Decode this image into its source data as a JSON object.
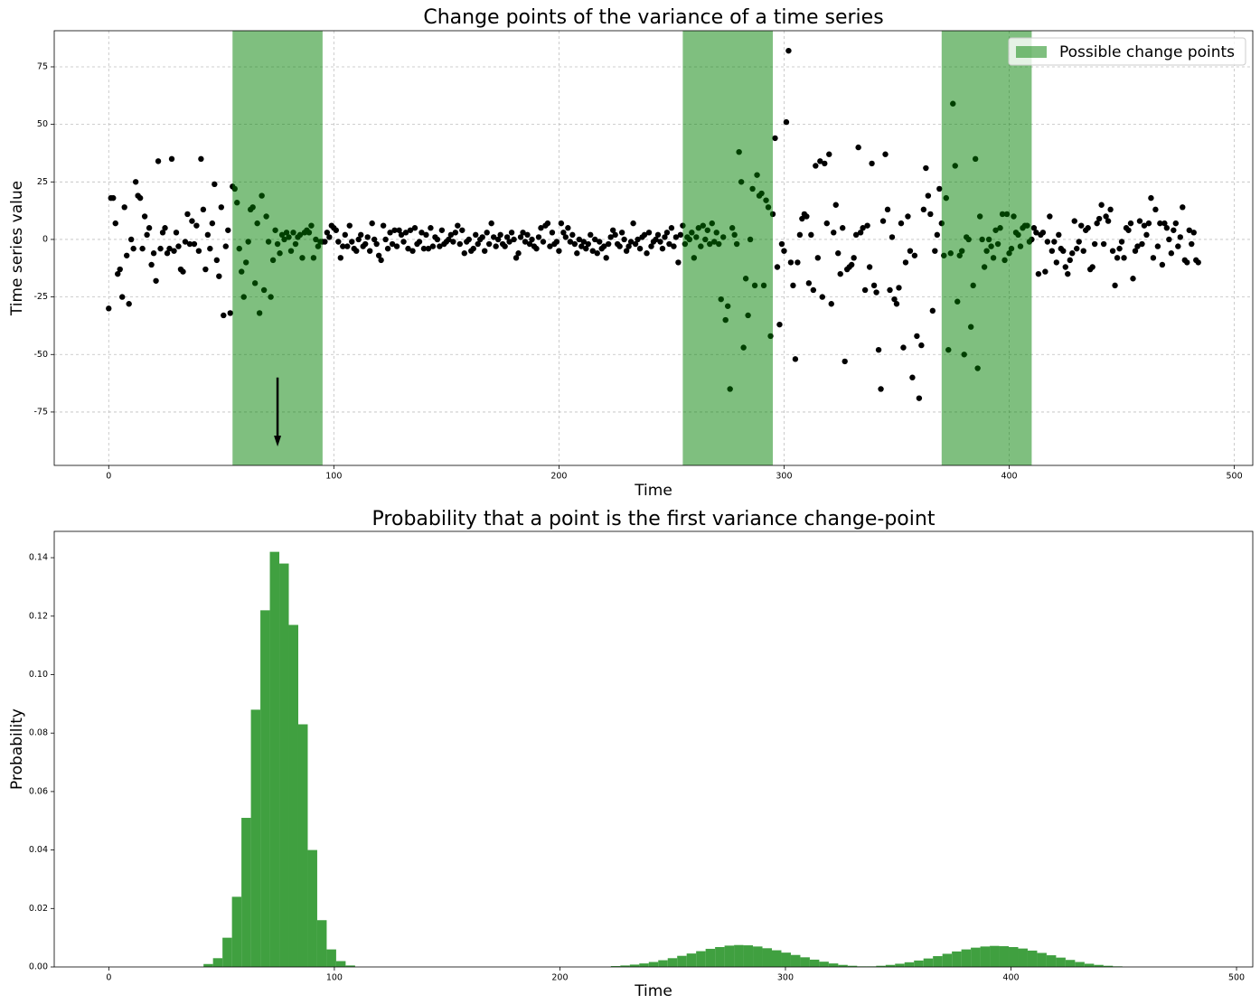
{
  "chart_data": [
    {
      "type": "scatter",
      "title": "Change points of the variance of a time series",
      "xlabel": "Time",
      "ylabel": "Time series value",
      "x": [
        0,
        1,
        2,
        3,
        4,
        5,
        6,
        7,
        8,
        9,
        10,
        11,
        12,
        13,
        14,
        15,
        16,
        17,
        18,
        19,
        20,
        21,
        22,
        23,
        24,
        25,
        26,
        27,
        28,
        29,
        30,
        31,
        32,
        33,
        34,
        35,
        36,
        37,
        38,
        39,
        40,
        41,
        42,
        43,
        44,
        45,
        46,
        47,
        48,
        49,
        50,
        51,
        52,
        53,
        54,
        55,
        56,
        57,
        58,
        59,
        60,
        61,
        62,
        63,
        64,
        65,
        66,
        67,
        68,
        69,
        70,
        71,
        72,
        73,
        74,
        75,
        76,
        77,
        78,
        79,
        80,
        81,
        82,
        83,
        84,
        85,
        86,
        87,
        88,
        89,
        90,
        91,
        92,
        93,
        94,
        95,
        96,
        97,
        98,
        99,
        100,
        101,
        102,
        103,
        104,
        105,
        106,
        107,
        108,
        109,
        110,
        111,
        112,
        113,
        114,
        115,
        116,
        117,
        118,
        119,
        120,
        121,
        122,
        123,
        124,
        125,
        126,
        127,
        128,
        129,
        130,
        131,
        132,
        133,
        134,
        135,
        136,
        137,
        138,
        139,
        140,
        141,
        142,
        143,
        144,
        145,
        146,
        147,
        148,
        149,
        150,
        151,
        152,
        153,
        154,
        155,
        156,
        157,
        158,
        159,
        160,
        161,
        162,
        163,
        164,
        165,
        166,
        167,
        168,
        169,
        170,
        171,
        172,
        173,
        174,
        175,
        176,
        177,
        178,
        179,
        180,
        181,
        182,
        183,
        184,
        185,
        186,
        187,
        188,
        189,
        190,
        191,
        192,
        193,
        194,
        195,
        196,
        197,
        198,
        199,
        200,
        201,
        202,
        203,
        204,
        205,
        206,
        207,
        208,
        209,
        210,
        211,
        212,
        213,
        214,
        215,
        216,
        217,
        218,
        219,
        220,
        221,
        222,
        223,
        224,
        225,
        226,
        227,
        228,
        229,
        230,
        231,
        232,
        233,
        234,
        235,
        236,
        237,
        238,
        239,
        240,
        241,
        242,
        243,
        244,
        245,
        246,
        247,
        248,
        249,
        250,
        251,
        252,
        253,
        254,
        255,
        256,
        257,
        258,
        259,
        260,
        261,
        262,
        263,
        264,
        265,
        266,
        267,
        268,
        269,
        270,
        271,
        272,
        273,
        274,
        275,
        276,
        277,
        278,
        279,
        280,
        281,
        282,
        283,
        284,
        285,
        286,
        287,
        288,
        289,
        290,
        291,
        292,
        293,
        294,
        295,
        296,
        297,
        298,
        299,
        300,
        301,
        302,
        303,
        304,
        305,
        306,
        307,
        308,
        309,
        310,
        311,
        312,
        313,
        314,
        315,
        316,
        317,
        318,
        319,
        320,
        321,
        322,
        323,
        324,
        325,
        326,
        327,
        328,
        329,
        330,
        331,
        332,
        333,
        334,
        335,
        336,
        337,
        338,
        339,
        340,
        341,
        342,
        343,
        344,
        345,
        346,
        347,
        348,
        349,
        350,
        351,
        352,
        353,
        354,
        355,
        356,
        357,
        358,
        359,
        360,
        361,
        362,
        363,
        364,
        365,
        366,
        367,
        368,
        369,
        370,
        371,
        372,
        373,
        374,
        375,
        376,
        377,
        378,
        379,
        380,
        381,
        382,
        383,
        384,
        385,
        386,
        387,
        388,
        389,
        390,
        391,
        392,
        393,
        394,
        395,
        396,
        397,
        398,
        399,
        400,
        401,
        402,
        403,
        404,
        405,
        406,
        407,
        408,
        409,
        410,
        411,
        412,
        413,
        414,
        415,
        416,
        417,
        418,
        419,
        420,
        421,
        422,
        423,
        424,
        425,
        426,
        427,
        428,
        429,
        430,
        431,
        432,
        433,
        434,
        435,
        436,
        437,
        438,
        439,
        440,
        441,
        442,
        443,
        444,
        445,
        446,
        447,
        448,
        449,
        450,
        451,
        452,
        453,
        454,
        455,
        456,
        457,
        458,
        459,
        460,
        461,
        462,
        463,
        464,
        465,
        466,
        467,
        468,
        469,
        470,
        471,
        472,
        473,
        474,
        475,
        476,
        477,
        478,
        479,
        480,
        481,
        482,
        483,
        484
      ],
      "values": [
        -30,
        18,
        18,
        7,
        -15,
        -13,
        -25,
        14,
        -7,
        -28,
        0,
        -4,
        25,
        19,
        18,
        -4,
        10,
        2,
        5,
        -11,
        -6,
        -18,
        34,
        -4,
        3,
        5,
        -6,
        -4,
        35,
        -5,
        3,
        -3,
        -13,
        -14,
        -1,
        11,
        -2,
        8,
        -2,
        6,
        -5,
        35,
        13,
        -13,
        2,
        -4,
        7,
        24,
        -9,
        -16,
        14,
        -33,
        -3,
        4,
        -32,
        23,
        22,
        16,
        -4,
        -14,
        -25,
        -10,
        -1,
        13,
        14,
        -19,
        7,
        -32,
        19,
        -22,
        10,
        -1,
        -25,
        -9,
        4,
        -2,
        -6,
        2,
        0,
        3,
        1,
        -5,
        3,
        -2,
        1,
        2,
        -8,
        3,
        4,
        3,
        6,
        -8,
        0,
        -3,
        -1,
        -1,
        -1,
        3,
        1,
        6,
        5,
        4,
        -1,
        -8,
        -3,
        2,
        -3,
        6,
        -1,
        -4,
        -5,
        0,
        2,
        -3,
        -2,
        1,
        -5,
        7,
        0,
        -2,
        -7,
        -9,
        6,
        0,
        -4,
        3,
        -2,
        4,
        -3,
        4,
        2,
        -1,
        3,
        -4,
        4,
        -5,
        5,
        -2,
        -1,
        3,
        -4,
        2,
        -4,
        5,
        -3,
        1,
        0,
        -3,
        4,
        -2,
        -1,
        0,
        2,
        -1,
        3,
        6,
        -2,
        4,
        -6,
        -1,
        0,
        -5,
        -4,
        2,
        -2,
        0,
        1,
        -5,
        3,
        -2,
        7,
        1,
        -3,
        0,
        2,
        -2,
        -3,
        1,
        -1,
        3,
        0,
        -8,
        -6,
        1,
        3,
        -1,
        2,
        -2,
        0,
        -3,
        -4,
        1,
        5,
        -1,
        6,
        7,
        -3,
        3,
        -2,
        -1,
        -5,
        7,
        3,
        1,
        5,
        -1,
        2,
        -2,
        -6,
        0,
        -3,
        -1,
        -4,
        -2,
        2,
        -5,
        0,
        -6,
        -1,
        -4,
        -3,
        -8,
        -2,
        1,
        4,
        2,
        -2,
        -3,
        3,
        0,
        -5,
        -3,
        -1,
        7,
        -2,
        0,
        -4,
        1,
        2,
        -6,
        3,
        -3,
        -1,
        0,
        2,
        -1,
        -4,
        1,
        3,
        -2,
        5,
        -3,
        1,
        -10,
        2,
        6,
        -2,
        1,
        0,
        3,
        -8,
        1,
        5,
        -3,
        6,
        0,
        4,
        -2,
        7,
        -1,
        3,
        -2,
        -26,
        1,
        -35,
        -29,
        -65,
        5,
        2,
        -2,
        38,
        25,
        -47,
        -17,
        -33,
        0,
        22,
        -20,
        28,
        19,
        20,
        -20,
        17,
        14,
        -42,
        11,
        44,
        -12,
        -37,
        -2,
        -5,
        51,
        82,
        -10,
        -20,
        -52,
        -10,
        2,
        9,
        11,
        10,
        -19,
        2,
        -22,
        32,
        -8,
        34,
        -25,
        33,
        7,
        37,
        -28,
        3,
        15,
        -6,
        -15,
        5,
        -53,
        -13,
        -12,
        -11,
        -8,
        2,
        40,
        3,
        5,
        -22,
        6,
        -12,
        33,
        -20,
        -23,
        -48,
        -65,
        8,
        37,
        13,
        -22,
        1,
        -26,
        -28,
        -21,
        7,
        -47,
        -10,
        10,
        -5,
        -60,
        -7,
        -42,
        -69,
        -46,
        13,
        31,
        19,
        11,
        -31,
        -5,
        2,
        22,
        7,
        -7,
        18,
        -48,
        -6,
        59,
        32,
        -27,
        -7,
        -5,
        -50,
        1,
        0,
        -38,
        -20,
        35,
        -56,
        10,
        0,
        -12,
        -5,
        0,
        -3,
        -8,
        4,
        -2,
        5,
        11,
        -9,
        11,
        -6,
        -4,
        10,
        3,
        2,
        -3,
        5,
        6,
        6,
        -1,
        0,
        5,
        3,
        -15,
        2,
        3,
        -14,
        -1,
        10,
        -5,
        -1,
        -10,
        2,
        -4,
        -5,
        -12,
        -15,
        -9,
        -6,
        8,
        -4,
        -1,
        6,
        -5,
        4,
        5,
        -13,
        -12,
        -2,
        7,
        9,
        15,
        -2,
        10,
        8,
        13,
        -5,
        -20,
        -8,
        -4,
        -1,
        -8,
        5,
        4,
        7,
        -17,
        -5,
        -3,
        8,
        -2,
        6,
        2,
        7,
        18,
        -8,
        13,
        -3,
        7,
        -11,
        7,
        5,
        0,
        -6,
        4,
        7,
        -3,
        1,
        14,
        -9,
        -10,
        4,
        -2,
        3,
        -9,
        -10
      ],
      "color": "#000000",
      "spans": [
        {
          "start": 55,
          "end": 95
        },
        {
          "start": 255,
          "end": 295
        },
        {
          "start": 370,
          "end": 410
        }
      ],
      "span_label": "Possible change points",
      "span_color": "#008000",
      "span_alpha": 0.5,
      "arrow": {
        "x": 75,
        "from": -60,
        "to": -90
      },
      "legend": "upper right",
      "xlim": [
        -24.2,
        508.2
      ],
      "xticks": [
        0,
        100,
        200,
        300,
        400,
        500
      ],
      "ylim": [
        -98.2,
        90.7
      ],
      "yticks": [
        -75,
        -50,
        -25,
        0,
        25,
        50,
        75
      ],
      "grid": true
    },
    {
      "type": "histogram",
      "title": "Probability that a point is the first variance change-point",
      "xlabel": "Time",
      "ylabel": "Probability",
      "bins": [
        0,
        4.2,
        8.4,
        12.6,
        16.8,
        21,
        25.2,
        29.4,
        33.6,
        37.8,
        42,
        46.2,
        50.4,
        54.6,
        58.8,
        63,
        67.2,
        71.4,
        75.6,
        79.8,
        84,
        88.2,
        92.4,
        96.6,
        100.8,
        105,
        109.2,
        113.4,
        117.6,
        121.8,
        126,
        130.2,
        134.4,
        138.6,
        142.8,
        147,
        151.2,
        155.4,
        159.6,
        163.8,
        168,
        172.2,
        176.4,
        180.6,
        184.8,
        189,
        193.2,
        197.4,
        201.6,
        205.8,
        210,
        214.2,
        218.4,
        222.6,
        226.8,
        231,
        235.2,
        239.4,
        243.6,
        247.8,
        252,
        256.2,
        260.4,
        264.6,
        268.8,
        273,
        277.2,
        281.4,
        285.6,
        289.8,
        294,
        298.2,
        302.4,
        306.6,
        310.8,
        315,
        319.2,
        323.4,
        327.6,
        331.8,
        336,
        340.2,
        344.4,
        348.6,
        352.8,
        357,
        361.2,
        365.4,
        369.6,
        373.8,
        378,
        382.2,
        386.4,
        390.6,
        394.8,
        399,
        403.2,
        407.4,
        411.6,
        415.8,
        420,
        424.2,
        428.4,
        432.6,
        436.8,
        441,
        445.2,
        449.4,
        453.6,
        457.8,
        462,
        466.2,
        470.4,
        474.6,
        478.8,
        483
      ],
      "values": [
        0,
        0,
        0,
        0,
        0,
        0,
        0,
        0,
        0,
        0,
        0.001,
        0.003,
        0.01,
        0.024,
        0.051,
        0.088,
        0.122,
        0.142,
        0.138,
        0.117,
        0.083,
        0.04,
        0.016,
        0.006,
        0.002,
        0.0005,
        0,
        0,
        0,
        0,
        0,
        0,
        0,
        0,
        0,
        0,
        0,
        0,
        0,
        0,
        0,
        0,
        0,
        0,
        0,
        0,
        0,
        0,
        0,
        0,
        0,
        0,
        0,
        0.0003,
        0.0005,
        0.0008,
        0.0012,
        0.0017,
        0.0023,
        0.003,
        0.0038,
        0.0046,
        0.0054,
        0.0062,
        0.0068,
        0.0073,
        0.0075,
        0.0074,
        0.007,
        0.0064,
        0.0057,
        0.0049,
        0.0041,
        0.0033,
        0.0025,
        0.0018,
        0.0012,
        0.0007,
        0.0004,
        0.0002,
        0.0002,
        0.0004,
        0.0007,
        0.0011,
        0.0016,
        0.0022,
        0.0029,
        0.0037,
        0.0045,
        0.0053,
        0.006,
        0.0066,
        0.007,
        0.0072,
        0.0071,
        0.0068,
        0.0063,
        0.0056,
        0.0048,
        0.004,
        0.0032,
        0.0024,
        0.0017,
        0.0011,
        0.0007,
        0.0004,
        0.0002,
        0,
        0,
        0,
        0,
        0,
        0,
        0,
        0
      ],
      "color": "#40a040",
      "xlim": [
        -24.2,
        507.2
      ],
      "xticks": [
        0,
        100,
        200,
        300,
        400,
        500
      ],
      "ylim": [
        0,
        0.149
      ],
      "yticks": [
        {
          "value": 0,
          "label": "0.00"
        },
        {
          "value": 0.02,
          "label": "0.02"
        },
        {
          "value": 0.04,
          "label": "0.04"
        },
        {
          "value": 0.06,
          "label": "0.06"
        },
        {
          "value": 0.08,
          "label": "0.08"
        },
        {
          "value": 0.1,
          "label": "0.10"
        },
        {
          "value": 0.12,
          "label": "0.12"
        },
        {
          "value": 0.14,
          "label": "0.14"
        }
      ],
      "grid": false
    }
  ]
}
